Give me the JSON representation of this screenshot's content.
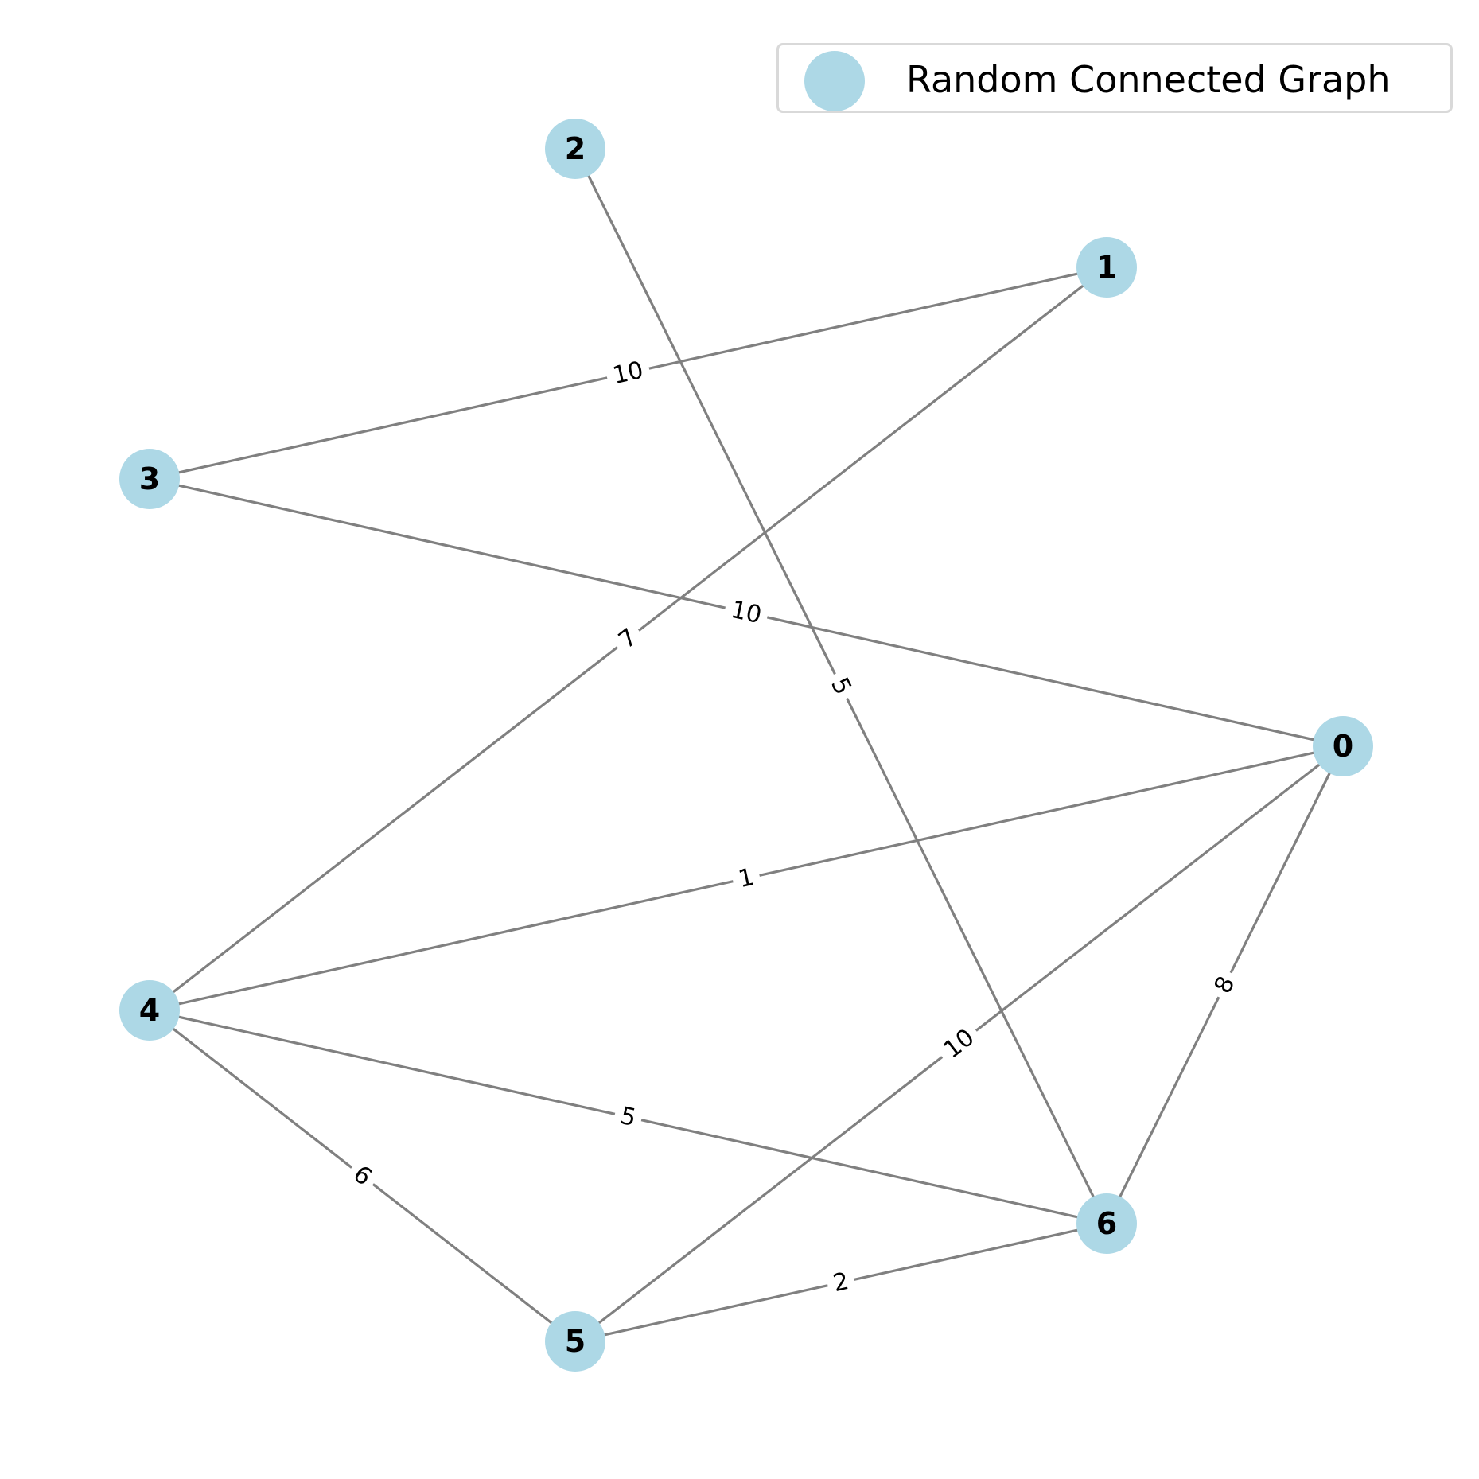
{
  "legend": {
    "label": "Random Connected Graph",
    "marker_color": "#add8e6"
  },
  "style": {
    "node_color": "#add8e6",
    "edge_color": "#808080",
    "label_color": "#000000"
  },
  "graph": {
    "nodes": [
      {
        "id": "0",
        "label": "0"
      },
      {
        "id": "1",
        "label": "1"
      },
      {
        "id": "2",
        "label": "2"
      },
      {
        "id": "3",
        "label": "3"
      },
      {
        "id": "4",
        "label": "4"
      },
      {
        "id": "5",
        "label": "5"
      },
      {
        "id": "6",
        "label": "6"
      }
    ],
    "edges": [
      {
        "source": "2",
        "target": "6",
        "weight": "5"
      },
      {
        "source": "1",
        "target": "3",
        "weight": "10"
      },
      {
        "source": "1",
        "target": "4",
        "weight": "7"
      },
      {
        "source": "3",
        "target": "0",
        "weight": "10"
      },
      {
        "source": "0",
        "target": "4",
        "weight": "1"
      },
      {
        "source": "0",
        "target": "5",
        "weight": "10"
      },
      {
        "source": "0",
        "target": "6",
        "weight": "8"
      },
      {
        "source": "4",
        "target": "6",
        "weight": "5"
      },
      {
        "source": "4",
        "target": "5",
        "weight": "6"
      },
      {
        "source": "5",
        "target": "6",
        "weight": "2"
      }
    ]
  }
}
